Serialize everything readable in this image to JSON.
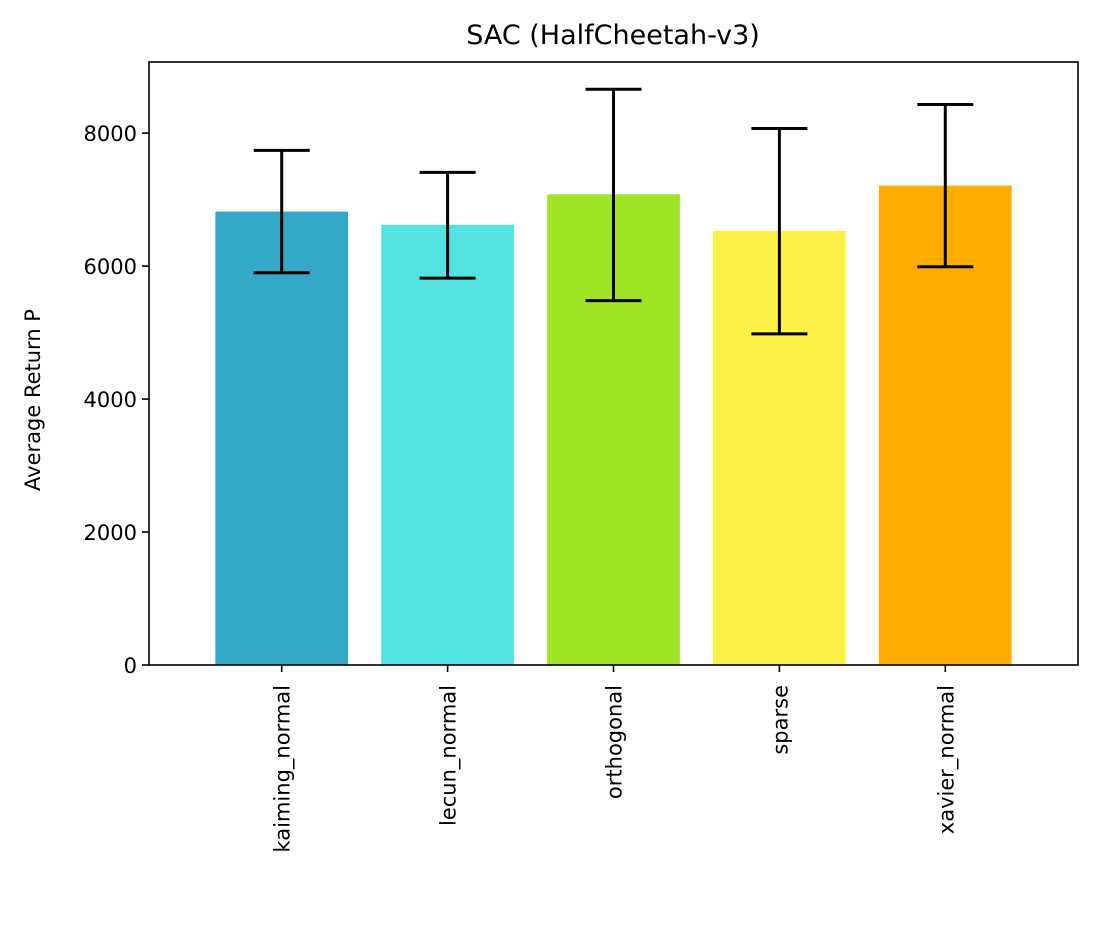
{
  "chart_data": {
    "type": "bar",
    "title": "SAC (HalfCheetah-v3)",
    "xlabel": "",
    "ylabel": "Average Return P",
    "categories": [
      "kaiming_normal",
      "lecun_normal",
      "orthogonal",
      "sparse",
      "xavier_normal"
    ],
    "values": [
      6820,
      6620,
      7080,
      6530,
      7210
    ],
    "errors_low": [
      5900,
      5820,
      5480,
      4980,
      5990
    ],
    "errors_high": [
      7740,
      7410,
      8660,
      8070,
      8430
    ],
    "colors": [
      "#33a8c7",
      "#52e3e1",
      "#a0e426",
      "#fdf148",
      "#ffab00"
    ],
    "ylim": [
      0,
      9070
    ],
    "yticks": [
      0,
      2000,
      4000,
      6000,
      8000
    ],
    "grid": false,
    "legend": "none"
  }
}
